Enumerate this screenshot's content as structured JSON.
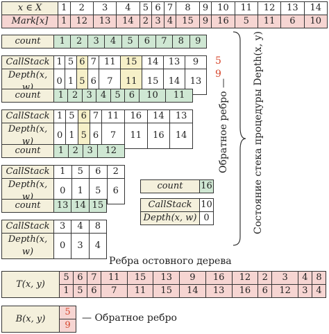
{
  "top_table": {
    "row_x_label": "x ∈ X",
    "row_x": [
      "1",
      "2",
      "3",
      "4",
      "5",
      "6",
      "7",
      "8",
      "9",
      "10",
      "11",
      "12",
      "13",
      "14"
    ],
    "row_mark_label": "Mark[x]",
    "row_mark": [
      "1",
      "12",
      "13",
      "14",
      "2",
      "3",
      "4",
      "15",
      "9",
      "16",
      "5",
      "11",
      "6",
      "10"
    ]
  },
  "labels": {
    "count": "count",
    "callstack": "CallStack",
    "depth": "Depth(x, w)"
  },
  "group1": {
    "count": [
      "1",
      "2",
      "3",
      "4",
      "5",
      "6",
      "7",
      "8",
      "9"
    ],
    "callstack": [
      "1",
      "5",
      "6",
      "7",
      "11",
      "15",
      "14",
      "13",
      "9"
    ],
    "depth": [
      "0",
      "1",
      "5",
      "6",
      "7",
      "11",
      "15",
      "14",
      "13"
    ],
    "side_top": "5",
    "side_bottom": "9"
  },
  "group2": {
    "count": [
      "1",
      "2",
      "3",
      "4",
      "5",
      "6",
      "10",
      "11"
    ],
    "callstack": [
      "1",
      "5",
      "6",
      "7",
      "11",
      "16",
      "14",
      "13"
    ],
    "depth": [
      "0",
      "1",
      "5",
      "6",
      "7",
      "11",
      "16",
      "14"
    ]
  },
  "group3": {
    "count": [
      "1",
      "2",
      "3",
      "12"
    ],
    "callstack": [
      "1",
      "5",
      "6",
      "2"
    ],
    "depth": [
      "0",
      "1",
      "5",
      "6"
    ]
  },
  "group4": {
    "count": [
      "13",
      "14",
      "15"
    ],
    "callstack": [
      "3",
      "4",
      "8"
    ],
    "depth": [
      "0",
      "3",
      "4"
    ]
  },
  "group5": {
    "count": [
      "16"
    ],
    "callstack": [
      "10"
    ],
    "depth": [
      "0"
    ]
  },
  "annotations": {
    "back_edge_vertical": "Обратное ребро —",
    "stack_state_vertical": "Состояние стека процедуры Depth(x, y)",
    "spanning_tree_title": "Ребра остовного дерева",
    "back_edge_label": "— Обратное ребро"
  },
  "t_table": {
    "label": "T(x, y)",
    "row1": [
      "5",
      "6",
      "7",
      "11",
      "15",
      "13",
      "9",
      "16",
      "12",
      "2",
      "3",
      "4",
      "8"
    ],
    "row2": [
      "1",
      "5",
      "6",
      "7",
      "11",
      "15",
      "14",
      "13",
      "16",
      "6",
      "12",
      "3",
      "4"
    ]
  },
  "b_table": {
    "label": "B(x, y)",
    "top": "5",
    "bottom": "9"
  },
  "colors": {
    "pink": "#f6d5d2",
    "green": "#cfe7d3",
    "yellow": "#f6f0c8",
    "label_bg": "#f4f0dc",
    "red_text": "#d6452b"
  }
}
